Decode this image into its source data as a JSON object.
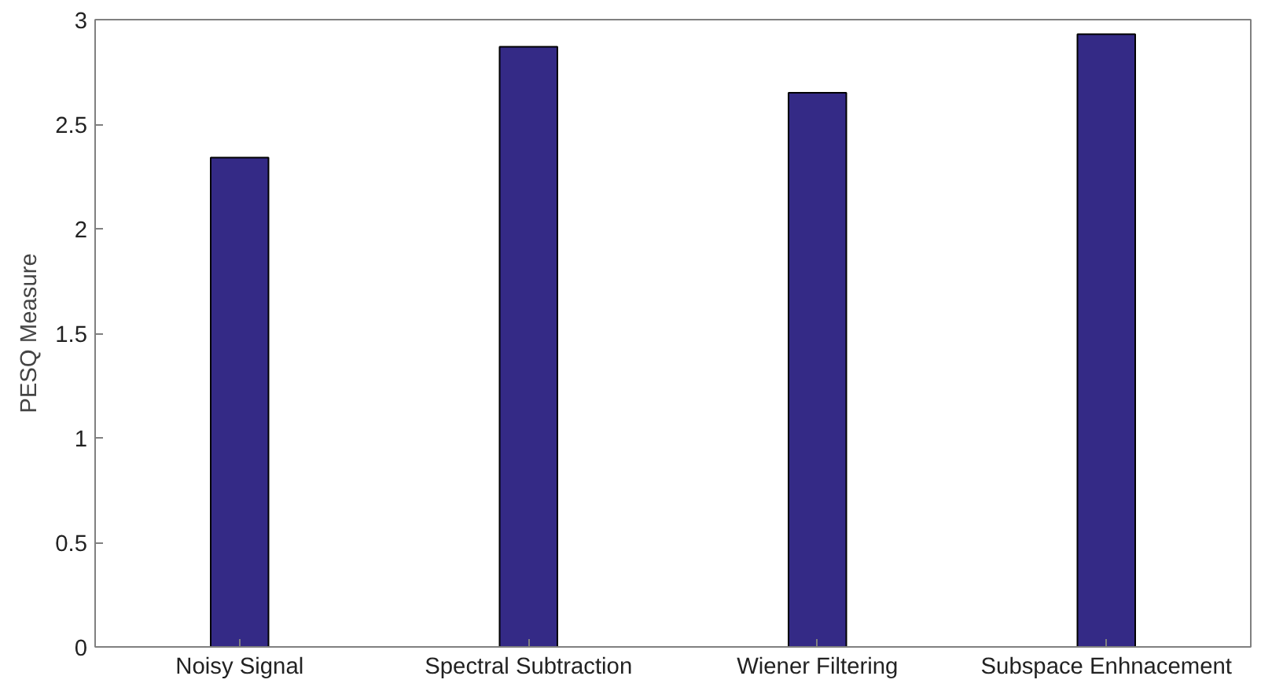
{
  "chart_data": {
    "type": "bar",
    "ylabel": "PESQ Measure",
    "categories": [
      "Noisy Signal",
      "Spectral Subtraction",
      "Wiener Filtering",
      "Subspace Enhnacement"
    ],
    "values": [
      2.34,
      2.87,
      2.65,
      2.93
    ],
    "color": "#342a86",
    "ylim": [
      0,
      3
    ],
    "yticks": [
      0,
      0.5,
      1,
      1.5,
      2,
      2.5,
      3
    ],
    "grid": false
  }
}
